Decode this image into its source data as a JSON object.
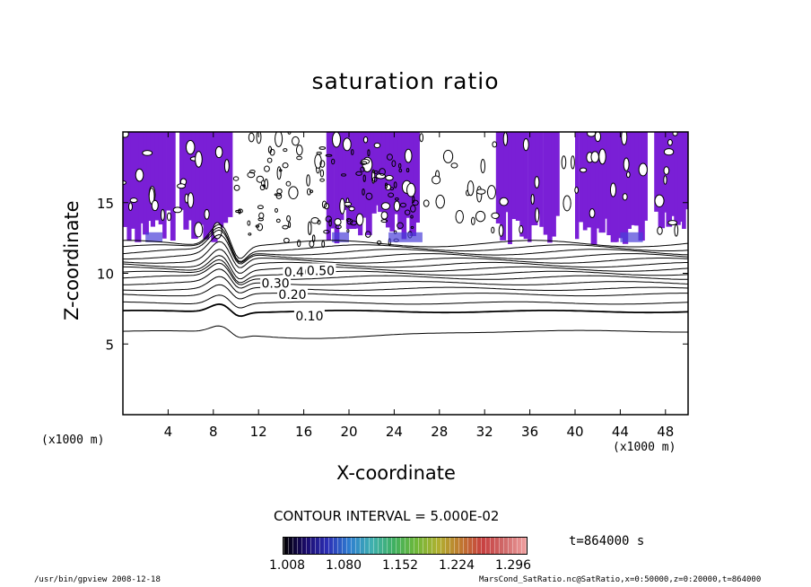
{
  "chart_data": {
    "type": "heatmap",
    "title": "saturation ratio",
    "xlabel": "X-coordinate",
    "ylabel": "Z-coordinate",
    "x_unit_left": "(x1000 m)",
    "x_unit_right": "(x1000 m)",
    "xlim": [
      0,
      50
    ],
    "ylim": [
      0,
      20
    ],
    "x_ticks": [
      4,
      8,
      12,
      16,
      20,
      24,
      28,
      32,
      36,
      40,
      44,
      48
    ],
    "y_ticks": [
      5,
      10,
      15
    ],
    "contour_labels": [
      {
        "text": "0.10",
        "x": 16.5,
        "z": 7.0
      },
      {
        "text": "0.20",
        "x": 15.0,
        "z": 8.5
      },
      {
        "text": "0.30",
        "x": 13.5,
        "z": 9.3
      },
      {
        "text": "0.40",
        "x": 15.5,
        "z": 10.1
      },
      {
        "text": "0.50",
        "x": 17.5,
        "z": 10.2
      }
    ],
    "contour_levels_z": [
      5.9,
      7.3,
      7.9,
      8.5,
      8.9,
      9.3,
      9.7,
      10.0,
      10.3,
      10.6,
      10.9,
      11.2,
      11.5,
      11.8,
      12.1
    ],
    "contour_interval_text": "CONTOUR INTERVAL = 5.000E-02",
    "colorbar": {
      "ticks": [
        "1.008",
        "1.080",
        "1.152",
        "1.224",
        "1.296"
      ],
      "colors": [
        "#000000",
        "#1a0a6a",
        "#2c2fb6",
        "#2e7fd0",
        "#3fb0b0",
        "#3fb060",
        "#6fb83a",
        "#b0b030",
        "#c07a30",
        "#c84040",
        "#d06a6a",
        "#f0a0a0"
      ]
    },
    "fill_color": "#7a1fd6",
    "time_text": "t=864000 s"
  },
  "footer": {
    "left": "/usr/bin/gpview  2008-12-18",
    "right": "MarsCond_SatRatio.nc@SatRatio,x=0:50000,z=0:20000,t=864000"
  }
}
